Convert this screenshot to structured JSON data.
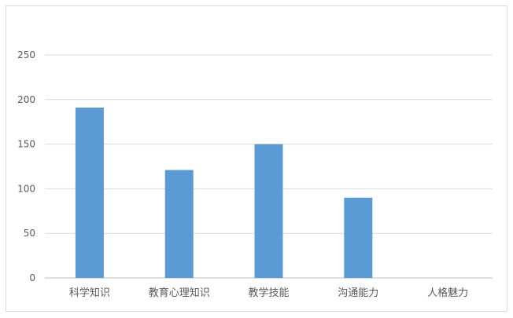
{
  "chart_data": {
    "type": "bar",
    "categories": [
      "科学知识",
      "教育心理知识",
      "教学技能",
      "沟通能力",
      "人格魅力"
    ],
    "values": [
      191,
      121,
      150,
      90,
      0
    ],
    "ylim": [
      0,
      250
    ],
    "yticks": [
      0,
      50,
      100,
      150,
      200,
      250
    ],
    "grid": true,
    "legend": "none",
    "colors": {
      "bar": "#5B9BD5",
      "grid": "#d9d9d9",
      "axis": "#bfbfbf",
      "text": "#595959"
    }
  }
}
